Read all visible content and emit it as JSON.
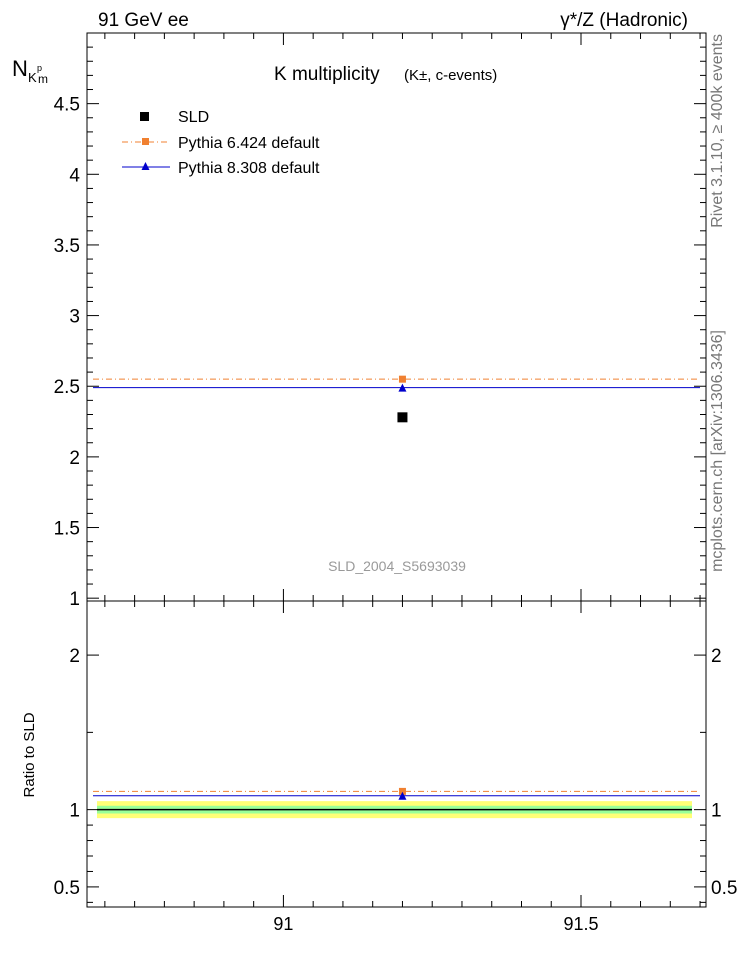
{
  "header": {
    "left": "91 GeV ee",
    "right": "γ*/Z (Hadronic)"
  },
  "side_labels": {
    "top": "Rivet 3.1.10, ≥ 400k events",
    "bottom": "mcplots.cern.ch [arXiv:1306.3436]"
  },
  "chart_data": [
    {
      "type": "scatter",
      "title": "K multiplicity",
      "subtitle": "(K±, c-events)",
      "ylabel": "N_{K^p m}",
      "ylabel_main": "N",
      "ylabel_sub": "K",
      "ylabel_sup": "p",
      "ylabel_sub2": "m",
      "watermark": "SLD_2004_S5693039",
      "xlim": [
        90.67,
        91.71
      ],
      "ylim": [
        0.98,
        5.0
      ],
      "ytick_values": [
        1,
        1.5,
        2,
        2.5,
        3,
        3.5,
        4,
        4.5
      ],
      "ytick_labels": [
        "1",
        "1.5",
        "2",
        "2.5",
        "3",
        "3.5",
        "4",
        "4.5"
      ],
      "legend_position": "top-left",
      "series": [
        {
          "name": "SLD",
          "x": [
            91.2
          ],
          "y": [
            2.28
          ],
          "color": "#000000",
          "marker": "square"
        },
        {
          "name": "Pythia 6.424 default",
          "x": [
            91.2
          ],
          "y": [
            2.55
          ],
          "color": "#f08030",
          "marker": "square",
          "line": "dashdot"
        },
        {
          "name": "Pythia 8.308 default",
          "x": [
            91.2
          ],
          "y": [
            2.49
          ],
          "color": "#0000cc",
          "marker": "triangle",
          "line": "solid"
        }
      ]
    },
    {
      "type": "scatter",
      "ylabel": "Ratio to SLD",
      "xlim": [
        90.67,
        91.71
      ],
      "ylim": [
        0.37,
        2.35
      ],
      "xtick_values": [
        91,
        91.5
      ],
      "xtick_labels": [
        "91",
        "91.5"
      ],
      "ytick_values": [
        0.5,
        1,
        2
      ],
      "ytick_labels": [
        "0.5",
        "1",
        "2"
      ],
      "bands": [
        {
          "name": "SLD total uncertainty",
          "low": 0.945,
          "high": 1.055,
          "color": "#ffff77"
        },
        {
          "name": "SLD stat uncertainty",
          "low": 0.975,
          "high": 1.025,
          "color": "#99ff99"
        }
      ],
      "series": [
        {
          "name": "SLD",
          "x": [
            91.2
          ],
          "y": [
            1.0
          ],
          "color": "#000000"
        },
        {
          "name": "Pythia 6.424 default",
          "x": [
            91.2
          ],
          "y": [
            1.118
          ],
          "color": "#f08030",
          "marker": "square",
          "line": "dashdot"
        },
        {
          "name": "Pythia 8.308 default",
          "x": [
            91.2
          ],
          "y": [
            1.09
          ],
          "color": "#0000cc",
          "marker": "triangle",
          "line": "solid"
        }
      ]
    }
  ]
}
